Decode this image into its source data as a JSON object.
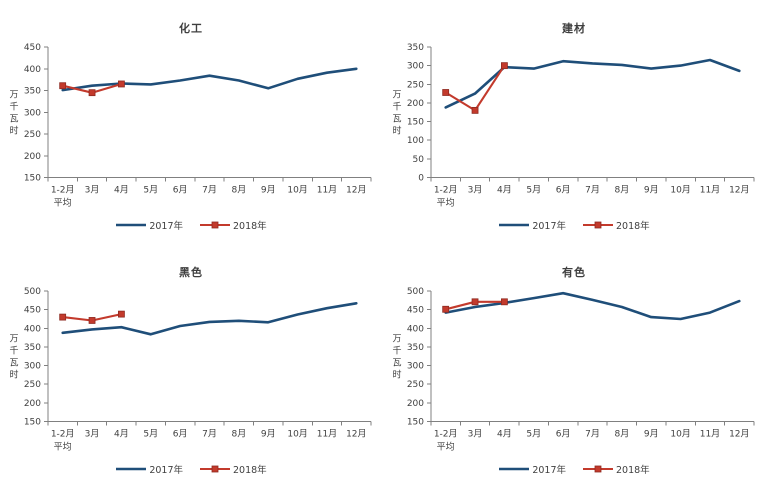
{
  "colors": {
    "background": "#ffffff",
    "axis": "#808080",
    "text": "#404040",
    "series_2017": "#1F4E79",
    "series_2018": "#C33A2C",
    "marker_border": "#8E2A21"
  },
  "y_axis_unit": "万千瓦时",
  "chart_data": [
    {
      "type": "line",
      "title": "化工",
      "ylabel": "万千瓦时",
      "ylim": [
        150,
        450
      ],
      "ytick_step": 50,
      "grid": false,
      "legend_position": "bottom",
      "categories": [
        "1-2月",
        "3月",
        "4月",
        "5月",
        "6月",
        "7月",
        "8月",
        "9月",
        "10月",
        "11月",
        "12月"
      ],
      "first_category_note": "平均",
      "series": [
        {
          "name": "2017年",
          "color": "#1F4E79",
          "marker": "none",
          "values": [
            351,
            361,
            366,
            364,
            373,
            384,
            373,
            355,
            377,
            391,
            400
          ]
        },
        {
          "name": "2018年",
          "color": "#C33A2C",
          "marker": "square",
          "values": [
            361,
            345,
            365,
            null,
            null,
            null,
            null,
            null,
            null,
            null,
            null
          ]
        }
      ]
    },
    {
      "type": "line",
      "title": "建材",
      "ylabel": "万千瓦时",
      "ylim": [
        0,
        350
      ],
      "ytick_step": 50,
      "grid": false,
      "legend_position": "bottom",
      "categories": [
        "1-2月",
        "3月",
        "4月",
        "5月",
        "6月",
        "7月",
        "8月",
        "9月",
        "10月",
        "11月",
        "12月"
      ],
      "first_category_note": "平均",
      "series": [
        {
          "name": "2017年",
          "color": "#1F4E79",
          "marker": "none",
          "values": [
            188,
            225,
            296,
            292,
            312,
            306,
            302,
            292,
            300,
            315,
            286
          ]
        },
        {
          "name": "2018年",
          "color": "#C33A2C",
          "marker": "square",
          "values": [
            228,
            180,
            300,
            null,
            null,
            null,
            null,
            null,
            null,
            null,
            null
          ]
        }
      ]
    },
    {
      "type": "line",
      "title": "黑色",
      "ylabel": "万千瓦时",
      "ylim": [
        150,
        500
      ],
      "ytick_step": 50,
      "grid": false,
      "legend_position": "bottom",
      "categories": [
        "1-2月",
        "3月",
        "4月",
        "5月",
        "6月",
        "7月",
        "8月",
        "9月",
        "10月",
        "11月",
        "12月"
      ],
      "first_category_note": "平均",
      "series": [
        {
          "name": "2017年",
          "color": "#1F4E79",
          "marker": "none",
          "values": [
            388,
            397,
            403,
            384,
            406,
            417,
            420,
            416,
            437,
            454,
            467
          ]
        },
        {
          "name": "2018年",
          "color": "#C33A2C",
          "marker": "square",
          "values": [
            430,
            421,
            438,
            null,
            null,
            null,
            null,
            null,
            null,
            null,
            null
          ]
        }
      ]
    },
    {
      "type": "line",
      "title": "有色",
      "ylabel": "万千瓦时",
      "ylim": [
        150,
        500
      ],
      "ytick_step": 50,
      "grid": false,
      "legend_position": "bottom",
      "categories": [
        "1-2月",
        "3月",
        "4月",
        "5月",
        "6月",
        "7月",
        "8月",
        "9月",
        "10月",
        "11月",
        "12月"
      ],
      "first_category_note": "平均",
      "series": [
        {
          "name": "2017年",
          "color": "#1F4E79",
          "marker": "none",
          "values": [
            442,
            457,
            468,
            481,
            494,
            476,
            457,
            430,
            425,
            442,
            473
          ]
        },
        {
          "name": "2018年",
          "color": "#C33A2C",
          "marker": "square",
          "values": [
            451,
            471,
            471,
            null,
            null,
            null,
            null,
            null,
            null,
            null,
            null
          ]
        }
      ]
    }
  ]
}
